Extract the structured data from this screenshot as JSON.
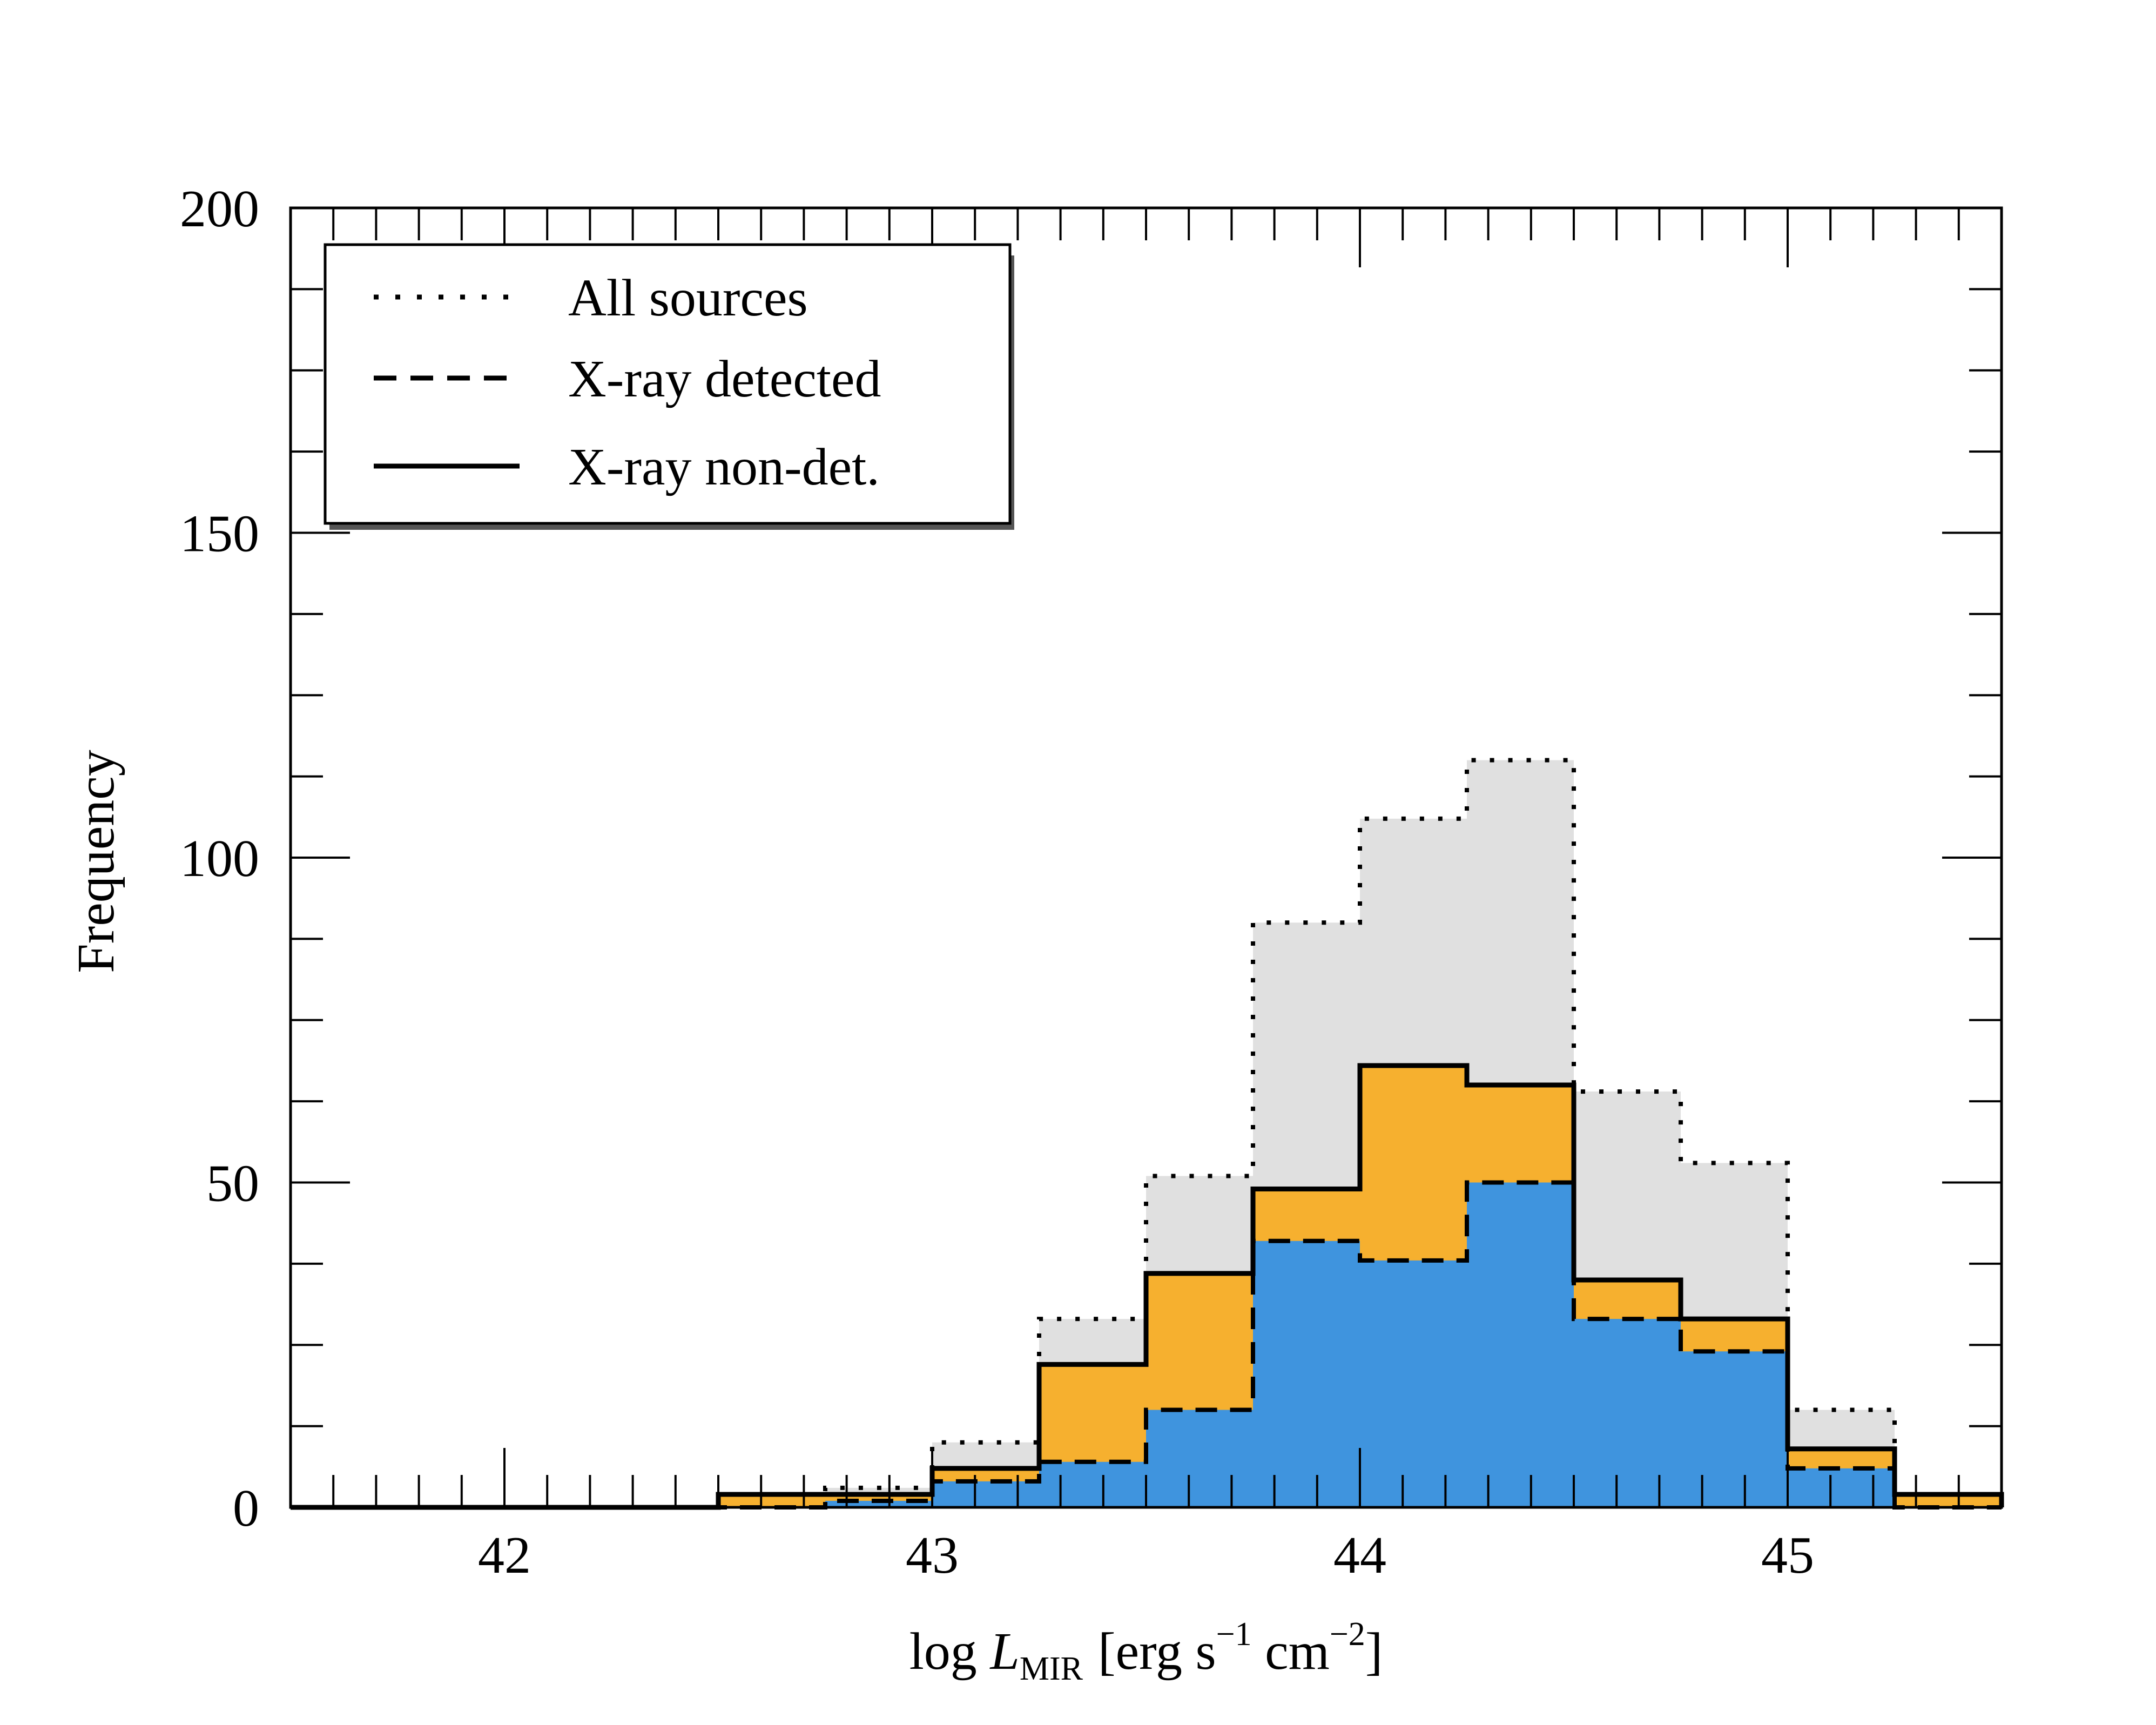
{
  "chart_data": {
    "type": "bar",
    "histogram": true,
    "bin_edges": [
      41.5,
      41.75,
      42.0,
      42.25,
      42.5,
      42.75,
      43.0,
      43.25,
      43.5,
      43.75,
      44.0,
      44.25,
      44.5,
      44.75,
      45.0,
      45.25,
      45.5
    ],
    "series": [
      {
        "name": "All sources",
        "line": "dotted",
        "fill": "#e0e0e0",
        "values": [
          0,
          0,
          0,
          0,
          2,
          3,
          10,
          29,
          51,
          90,
          106,
          115,
          64,
          53,
          15,
          2
        ]
      },
      {
        "name": "X-ray detected",
        "line": "dashed",
        "fill": "#3f94de",
        "values": [
          0,
          0,
          0,
          0,
          0,
          1,
          4,
          7,
          15,
          41,
          38,
          50,
          29,
          24,
          6,
          0
        ]
      },
      {
        "name": "X-ray non-det.",
        "line": "solid",
        "fill": "#f6b02f",
        "values": [
          0,
          0,
          0,
          0,
          2,
          2,
          6,
          22,
          36,
          49,
          68,
          65,
          35,
          29,
          9,
          2
        ]
      }
    ],
    "xlabel": {
      "main": "log",
      "var": "L",
      "sub": "MIR",
      "unit_a": "[erg s",
      "exp1": "−1",
      "unit_b": " cm",
      "exp2": "−2",
      "unit_c": "]"
    },
    "ylabel": "Frequency",
    "xlim": [
      41.5,
      45.5
    ],
    "ylim": [
      0,
      200
    ],
    "xticks": [
      "42",
      "43",
      "44",
      "45"
    ],
    "yticks": [
      "0",
      "50",
      "100",
      "150",
      "200"
    ],
    "grid": false,
    "legend_position": "top-left"
  }
}
